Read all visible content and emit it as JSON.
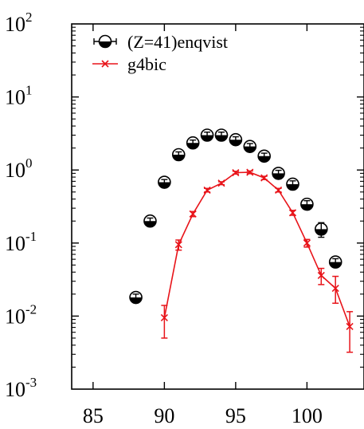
{
  "chart_data": {
    "type": "scatter",
    "title": "",
    "xlabel": "",
    "ylabel": "",
    "xlim": [
      83.5,
      104
    ],
    "ylim": [
      0.001,
      100
    ],
    "yscale": "log",
    "grid": false,
    "legend_position": "top-left",
    "x_ticks": [
      "85",
      "90",
      "95",
      "100"
    ],
    "y_ticks": [
      {
        "base": "10",
        "exp": "2"
      },
      {
        "base": "10",
        "exp": "1"
      },
      {
        "base": "10",
        "exp": "0"
      },
      {
        "base": "10",
        "exp": "-1"
      },
      {
        "base": "10",
        "exp": "-2"
      },
      {
        "base": "10",
        "exp": "-3"
      }
    ],
    "series": [
      {
        "name": "(Z=41)enqvist",
        "style": "points",
        "marker": "half-filled-circle",
        "color": "#000000",
        "points": [
          {
            "x": 88,
            "y": 0.018,
            "err": 0.002
          },
          {
            "x": 89,
            "y": 0.2,
            "err": 0.02
          },
          {
            "x": 90,
            "y": 0.68,
            "err": 0.06
          },
          {
            "x": 91,
            "y": 1.62,
            "err": 0.15
          },
          {
            "x": 92,
            "y": 2.35,
            "err": 0.22
          },
          {
            "x": 93,
            "y": 3.0,
            "err": 0.3
          },
          {
            "x": 94,
            "y": 3.0,
            "err": 0.3
          },
          {
            "x": 95,
            "y": 2.6,
            "err": 0.25
          },
          {
            "x": 96,
            "y": 2.1,
            "err": 0.2
          },
          {
            "x": 97,
            "y": 1.55,
            "err": 0.15
          },
          {
            "x": 98,
            "y": 0.9,
            "err": 0.09
          },
          {
            "x": 99,
            "y": 0.64,
            "err": 0.07
          },
          {
            "x": 100,
            "y": 0.34,
            "err": 0.04
          },
          {
            "x": 101,
            "y": 0.155,
            "err": 0.035
          },
          {
            "x": 102,
            "y": 0.055,
            "err": 0.006
          }
        ]
      },
      {
        "name": "g4bic",
        "style": "line-points",
        "marker": "x",
        "color": "#e8141a",
        "points": [
          {
            "x": 90,
            "y": 0.0095,
            "err_low": 0.0045,
            "err_high": 0.0045
          },
          {
            "x": 91,
            "y": 0.095,
            "err_low": 0.015,
            "err_high": 0.015
          },
          {
            "x": 92,
            "y": 0.25,
            "err_low": 0.02,
            "err_high": 0.02
          },
          {
            "x": 93,
            "y": 0.53,
            "err_low": 0.03,
            "err_high": 0.03
          },
          {
            "x": 94,
            "y": 0.66,
            "err_low": 0.03,
            "err_high": 0.03
          },
          {
            "x": 95,
            "y": 0.92,
            "err_low": 0.04,
            "err_high": 0.04
          },
          {
            "x": 96,
            "y": 0.93,
            "err_low": 0.04,
            "err_high": 0.04
          },
          {
            "x": 97,
            "y": 0.78,
            "err_low": 0.04,
            "err_high": 0.04
          },
          {
            "x": 98,
            "y": 0.53,
            "err_low": 0.03,
            "err_high": 0.03
          },
          {
            "x": 99,
            "y": 0.26,
            "err_low": 0.02,
            "err_high": 0.02
          },
          {
            "x": 100,
            "y": 0.1,
            "err_low": 0.012,
            "err_high": 0.012
          },
          {
            "x": 101,
            "y": 0.036,
            "err_low": 0.009,
            "err_high": 0.009
          },
          {
            "x": 102,
            "y": 0.024,
            "err_low": 0.009,
            "err_high": 0.011
          },
          {
            "x": 103,
            "y": 0.0072,
            "err_low": 0.004,
            "err_high": 0.0043
          }
        ]
      }
    ]
  }
}
